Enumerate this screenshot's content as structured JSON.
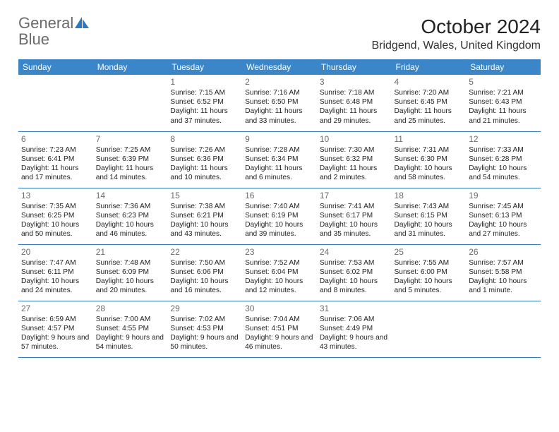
{
  "logo": {
    "text1": "General",
    "text2": "Blue"
  },
  "title": "October 2024",
  "location": "Bridgend, Wales, United Kingdom",
  "colors": {
    "header_bg": "#3b86c8",
    "header_text": "#ffffff",
    "row_border": "#2f78bd",
    "logo_gray": "#6b6b6b",
    "logo_blue": "#2f78bd",
    "body_text": "#222222",
    "daynum": "#6b6b6b"
  },
  "dayHeaders": [
    "Sunday",
    "Monday",
    "Tuesday",
    "Wednesday",
    "Thursday",
    "Friday",
    "Saturday"
  ],
  "weeks": [
    [
      null,
      null,
      {
        "n": "1",
        "sr": "Sunrise: 7:15 AM",
        "ss": "Sunset: 6:52 PM",
        "dl": "Daylight: 11 hours and 37 minutes."
      },
      {
        "n": "2",
        "sr": "Sunrise: 7:16 AM",
        "ss": "Sunset: 6:50 PM",
        "dl": "Daylight: 11 hours and 33 minutes."
      },
      {
        "n": "3",
        "sr": "Sunrise: 7:18 AM",
        "ss": "Sunset: 6:48 PM",
        "dl": "Daylight: 11 hours and 29 minutes."
      },
      {
        "n": "4",
        "sr": "Sunrise: 7:20 AM",
        "ss": "Sunset: 6:45 PM",
        "dl": "Daylight: 11 hours and 25 minutes."
      },
      {
        "n": "5",
        "sr": "Sunrise: 7:21 AM",
        "ss": "Sunset: 6:43 PM",
        "dl": "Daylight: 11 hours and 21 minutes."
      }
    ],
    [
      {
        "n": "6",
        "sr": "Sunrise: 7:23 AM",
        "ss": "Sunset: 6:41 PM",
        "dl": "Daylight: 11 hours and 17 minutes."
      },
      {
        "n": "7",
        "sr": "Sunrise: 7:25 AM",
        "ss": "Sunset: 6:39 PM",
        "dl": "Daylight: 11 hours and 14 minutes."
      },
      {
        "n": "8",
        "sr": "Sunrise: 7:26 AM",
        "ss": "Sunset: 6:36 PM",
        "dl": "Daylight: 11 hours and 10 minutes."
      },
      {
        "n": "9",
        "sr": "Sunrise: 7:28 AM",
        "ss": "Sunset: 6:34 PM",
        "dl": "Daylight: 11 hours and 6 minutes."
      },
      {
        "n": "10",
        "sr": "Sunrise: 7:30 AM",
        "ss": "Sunset: 6:32 PM",
        "dl": "Daylight: 11 hours and 2 minutes."
      },
      {
        "n": "11",
        "sr": "Sunrise: 7:31 AM",
        "ss": "Sunset: 6:30 PM",
        "dl": "Daylight: 10 hours and 58 minutes."
      },
      {
        "n": "12",
        "sr": "Sunrise: 7:33 AM",
        "ss": "Sunset: 6:28 PM",
        "dl": "Daylight: 10 hours and 54 minutes."
      }
    ],
    [
      {
        "n": "13",
        "sr": "Sunrise: 7:35 AM",
        "ss": "Sunset: 6:25 PM",
        "dl": "Daylight: 10 hours and 50 minutes."
      },
      {
        "n": "14",
        "sr": "Sunrise: 7:36 AM",
        "ss": "Sunset: 6:23 PM",
        "dl": "Daylight: 10 hours and 46 minutes."
      },
      {
        "n": "15",
        "sr": "Sunrise: 7:38 AM",
        "ss": "Sunset: 6:21 PM",
        "dl": "Daylight: 10 hours and 43 minutes."
      },
      {
        "n": "16",
        "sr": "Sunrise: 7:40 AM",
        "ss": "Sunset: 6:19 PM",
        "dl": "Daylight: 10 hours and 39 minutes."
      },
      {
        "n": "17",
        "sr": "Sunrise: 7:41 AM",
        "ss": "Sunset: 6:17 PM",
        "dl": "Daylight: 10 hours and 35 minutes."
      },
      {
        "n": "18",
        "sr": "Sunrise: 7:43 AM",
        "ss": "Sunset: 6:15 PM",
        "dl": "Daylight: 10 hours and 31 minutes."
      },
      {
        "n": "19",
        "sr": "Sunrise: 7:45 AM",
        "ss": "Sunset: 6:13 PM",
        "dl": "Daylight: 10 hours and 27 minutes."
      }
    ],
    [
      {
        "n": "20",
        "sr": "Sunrise: 7:47 AM",
        "ss": "Sunset: 6:11 PM",
        "dl": "Daylight: 10 hours and 24 minutes."
      },
      {
        "n": "21",
        "sr": "Sunrise: 7:48 AM",
        "ss": "Sunset: 6:09 PM",
        "dl": "Daylight: 10 hours and 20 minutes."
      },
      {
        "n": "22",
        "sr": "Sunrise: 7:50 AM",
        "ss": "Sunset: 6:06 PM",
        "dl": "Daylight: 10 hours and 16 minutes."
      },
      {
        "n": "23",
        "sr": "Sunrise: 7:52 AM",
        "ss": "Sunset: 6:04 PM",
        "dl": "Daylight: 10 hours and 12 minutes."
      },
      {
        "n": "24",
        "sr": "Sunrise: 7:53 AM",
        "ss": "Sunset: 6:02 PM",
        "dl": "Daylight: 10 hours and 8 minutes."
      },
      {
        "n": "25",
        "sr": "Sunrise: 7:55 AM",
        "ss": "Sunset: 6:00 PM",
        "dl": "Daylight: 10 hours and 5 minutes."
      },
      {
        "n": "26",
        "sr": "Sunrise: 7:57 AM",
        "ss": "Sunset: 5:58 PM",
        "dl": "Daylight: 10 hours and 1 minute."
      }
    ],
    [
      {
        "n": "27",
        "sr": "Sunrise: 6:59 AM",
        "ss": "Sunset: 4:57 PM",
        "dl": "Daylight: 9 hours and 57 minutes."
      },
      {
        "n": "28",
        "sr": "Sunrise: 7:00 AM",
        "ss": "Sunset: 4:55 PM",
        "dl": "Daylight: 9 hours and 54 minutes."
      },
      {
        "n": "29",
        "sr": "Sunrise: 7:02 AM",
        "ss": "Sunset: 4:53 PM",
        "dl": "Daylight: 9 hours and 50 minutes."
      },
      {
        "n": "30",
        "sr": "Sunrise: 7:04 AM",
        "ss": "Sunset: 4:51 PM",
        "dl": "Daylight: 9 hours and 46 minutes."
      },
      {
        "n": "31",
        "sr": "Sunrise: 7:06 AM",
        "ss": "Sunset: 4:49 PM",
        "dl": "Daylight: 9 hours and 43 minutes."
      },
      null,
      null
    ]
  ]
}
